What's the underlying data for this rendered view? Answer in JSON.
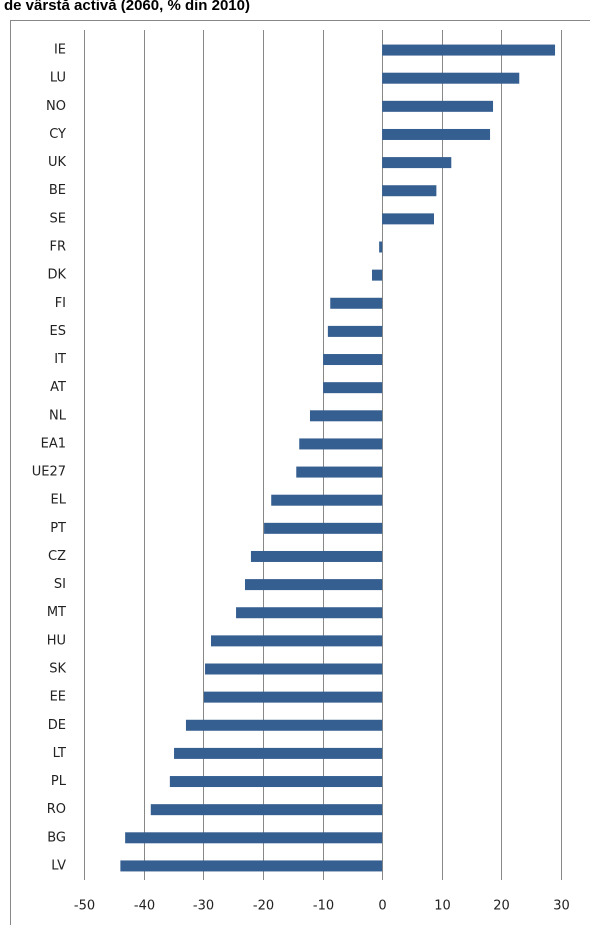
{
  "chart_data": {
    "type": "barh",
    "title": "de vârstă activă (2060, % din 2010)",
    "categories": [
      "IE",
      "LU",
      "NO",
      "CY",
      "UK",
      "BE",
      "SE",
      "FR",
      "DK",
      "FI",
      "ES",
      "IT",
      "AT",
      "NL",
      "EA1",
      "UE27",
      "EL",
      "PT",
      "CZ",
      "SI",
      "MT",
      "HU",
      "SK",
      "EE",
      "DE",
      "LT",
      "PL",
      "RO",
      "BG",
      "LV"
    ],
    "values": [
      29.0,
      23.0,
      18.6,
      18.1,
      11.6,
      9.1,
      8.7,
      -0.5,
      -1.7,
      -8.7,
      -9.1,
      -9.9,
      -9.9,
      -12.1,
      -13.9,
      -14.4,
      -18.6,
      -19.8,
      -22.0,
      -23.0,
      -24.5,
      -28.7,
      -29.7,
      -29.9,
      -32.9,
      -34.9,
      -35.6,
      -38.8,
      -43.1,
      -43.9
    ],
    "color": "#365f91",
    "xlim": [
      -50,
      30
    ],
    "xticks": [
      -50,
      -40,
      -30,
      -20,
      -10,
      0,
      10,
      20,
      30
    ],
    "grid": true
  }
}
